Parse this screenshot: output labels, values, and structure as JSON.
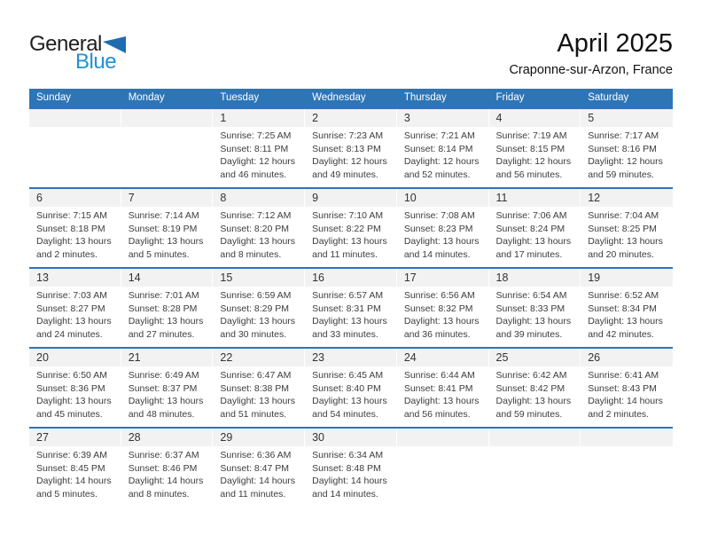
{
  "logo": {
    "text_top": "General",
    "text_bottom": "Blue"
  },
  "header": {
    "month_title": "April 2025",
    "location": "Craponne-sur-Arzon, France"
  },
  "colors": {
    "accent": "#2E75B6",
    "strip_gray": "#F2F2F2",
    "logo_triangle": "#1E6CB0",
    "logo_blue_text": "#2191D4",
    "body_text": "#3C3C3C",
    "day_number": "#333333"
  },
  "calendar": {
    "weekdays": [
      "Sunday",
      "Monday",
      "Tuesday",
      "Wednesday",
      "Thursday",
      "Friday",
      "Saturday"
    ],
    "weeks": [
      [
        null,
        null,
        {
          "day": "1",
          "sunrise": "Sunrise: 7:25 AM",
          "sunset": "Sunset: 8:11 PM",
          "daylight1": "Daylight: 12 hours",
          "daylight2": "and 46 minutes."
        },
        {
          "day": "2",
          "sunrise": "Sunrise: 7:23 AM",
          "sunset": "Sunset: 8:13 PM",
          "daylight1": "Daylight: 12 hours",
          "daylight2": "and 49 minutes."
        },
        {
          "day": "3",
          "sunrise": "Sunrise: 7:21 AM",
          "sunset": "Sunset: 8:14 PM",
          "daylight1": "Daylight: 12 hours",
          "daylight2": "and 52 minutes."
        },
        {
          "day": "4",
          "sunrise": "Sunrise: 7:19 AM",
          "sunset": "Sunset: 8:15 PM",
          "daylight1": "Daylight: 12 hours",
          "daylight2": "and 56 minutes."
        },
        {
          "day": "5",
          "sunrise": "Sunrise: 7:17 AM",
          "sunset": "Sunset: 8:16 PM",
          "daylight1": "Daylight: 12 hours",
          "daylight2": "and 59 minutes."
        }
      ],
      [
        {
          "day": "6",
          "sunrise": "Sunrise: 7:15 AM",
          "sunset": "Sunset: 8:18 PM",
          "daylight1": "Daylight: 13 hours",
          "daylight2": "and 2 minutes."
        },
        {
          "day": "7",
          "sunrise": "Sunrise: 7:14 AM",
          "sunset": "Sunset: 8:19 PM",
          "daylight1": "Daylight: 13 hours",
          "daylight2": "and 5 minutes."
        },
        {
          "day": "8",
          "sunrise": "Sunrise: 7:12 AM",
          "sunset": "Sunset: 8:20 PM",
          "daylight1": "Daylight: 13 hours",
          "daylight2": "and 8 minutes."
        },
        {
          "day": "9",
          "sunrise": "Sunrise: 7:10 AM",
          "sunset": "Sunset: 8:22 PM",
          "daylight1": "Daylight: 13 hours",
          "daylight2": "and 11 minutes."
        },
        {
          "day": "10",
          "sunrise": "Sunrise: 7:08 AM",
          "sunset": "Sunset: 8:23 PM",
          "daylight1": "Daylight: 13 hours",
          "daylight2": "and 14 minutes."
        },
        {
          "day": "11",
          "sunrise": "Sunrise: 7:06 AM",
          "sunset": "Sunset: 8:24 PM",
          "daylight1": "Daylight: 13 hours",
          "daylight2": "and 17 minutes."
        },
        {
          "day": "12",
          "sunrise": "Sunrise: 7:04 AM",
          "sunset": "Sunset: 8:25 PM",
          "daylight1": "Daylight: 13 hours",
          "daylight2": "and 20 minutes."
        }
      ],
      [
        {
          "day": "13",
          "sunrise": "Sunrise: 7:03 AM",
          "sunset": "Sunset: 8:27 PM",
          "daylight1": "Daylight: 13 hours",
          "daylight2": "and 24 minutes."
        },
        {
          "day": "14",
          "sunrise": "Sunrise: 7:01 AM",
          "sunset": "Sunset: 8:28 PM",
          "daylight1": "Daylight: 13 hours",
          "daylight2": "and 27 minutes."
        },
        {
          "day": "15",
          "sunrise": "Sunrise: 6:59 AM",
          "sunset": "Sunset: 8:29 PM",
          "daylight1": "Daylight: 13 hours",
          "daylight2": "and 30 minutes."
        },
        {
          "day": "16",
          "sunrise": "Sunrise: 6:57 AM",
          "sunset": "Sunset: 8:31 PM",
          "daylight1": "Daylight: 13 hours",
          "daylight2": "and 33 minutes."
        },
        {
          "day": "17",
          "sunrise": "Sunrise: 6:56 AM",
          "sunset": "Sunset: 8:32 PM",
          "daylight1": "Daylight: 13 hours",
          "daylight2": "and 36 minutes."
        },
        {
          "day": "18",
          "sunrise": "Sunrise: 6:54 AM",
          "sunset": "Sunset: 8:33 PM",
          "daylight1": "Daylight: 13 hours",
          "daylight2": "and 39 minutes."
        },
        {
          "day": "19",
          "sunrise": "Sunrise: 6:52 AM",
          "sunset": "Sunset: 8:34 PM",
          "daylight1": "Daylight: 13 hours",
          "daylight2": "and 42 minutes."
        }
      ],
      [
        {
          "day": "20",
          "sunrise": "Sunrise: 6:50 AM",
          "sunset": "Sunset: 8:36 PM",
          "daylight1": "Daylight: 13 hours",
          "daylight2": "and 45 minutes."
        },
        {
          "day": "21",
          "sunrise": "Sunrise: 6:49 AM",
          "sunset": "Sunset: 8:37 PM",
          "daylight1": "Daylight: 13 hours",
          "daylight2": "and 48 minutes."
        },
        {
          "day": "22",
          "sunrise": "Sunrise: 6:47 AM",
          "sunset": "Sunset: 8:38 PM",
          "daylight1": "Daylight: 13 hours",
          "daylight2": "and 51 minutes."
        },
        {
          "day": "23",
          "sunrise": "Sunrise: 6:45 AM",
          "sunset": "Sunset: 8:40 PM",
          "daylight1": "Daylight: 13 hours",
          "daylight2": "and 54 minutes."
        },
        {
          "day": "24",
          "sunrise": "Sunrise: 6:44 AM",
          "sunset": "Sunset: 8:41 PM",
          "daylight1": "Daylight: 13 hours",
          "daylight2": "and 56 minutes."
        },
        {
          "day": "25",
          "sunrise": "Sunrise: 6:42 AM",
          "sunset": "Sunset: 8:42 PM",
          "daylight1": "Daylight: 13 hours",
          "daylight2": "and 59 minutes."
        },
        {
          "day": "26",
          "sunrise": "Sunrise: 6:41 AM",
          "sunset": "Sunset: 8:43 PM",
          "daylight1": "Daylight: 14 hours",
          "daylight2": "and 2 minutes."
        }
      ],
      [
        {
          "day": "27",
          "sunrise": "Sunrise: 6:39 AM",
          "sunset": "Sunset: 8:45 PM",
          "daylight1": "Daylight: 14 hours",
          "daylight2": "and 5 minutes."
        },
        {
          "day": "28",
          "sunrise": "Sunrise: 6:37 AM",
          "sunset": "Sunset: 8:46 PM",
          "daylight1": "Daylight: 14 hours",
          "daylight2": "and 8 minutes."
        },
        {
          "day": "29",
          "sunrise": "Sunrise: 6:36 AM",
          "sunset": "Sunset: 8:47 PM",
          "daylight1": "Daylight: 14 hours",
          "daylight2": "and 11 minutes."
        },
        {
          "day": "30",
          "sunrise": "Sunrise: 6:34 AM",
          "sunset": "Sunset: 8:48 PM",
          "daylight1": "Daylight: 14 hours",
          "daylight2": "and 14 minutes."
        },
        null,
        null,
        null
      ]
    ]
  }
}
